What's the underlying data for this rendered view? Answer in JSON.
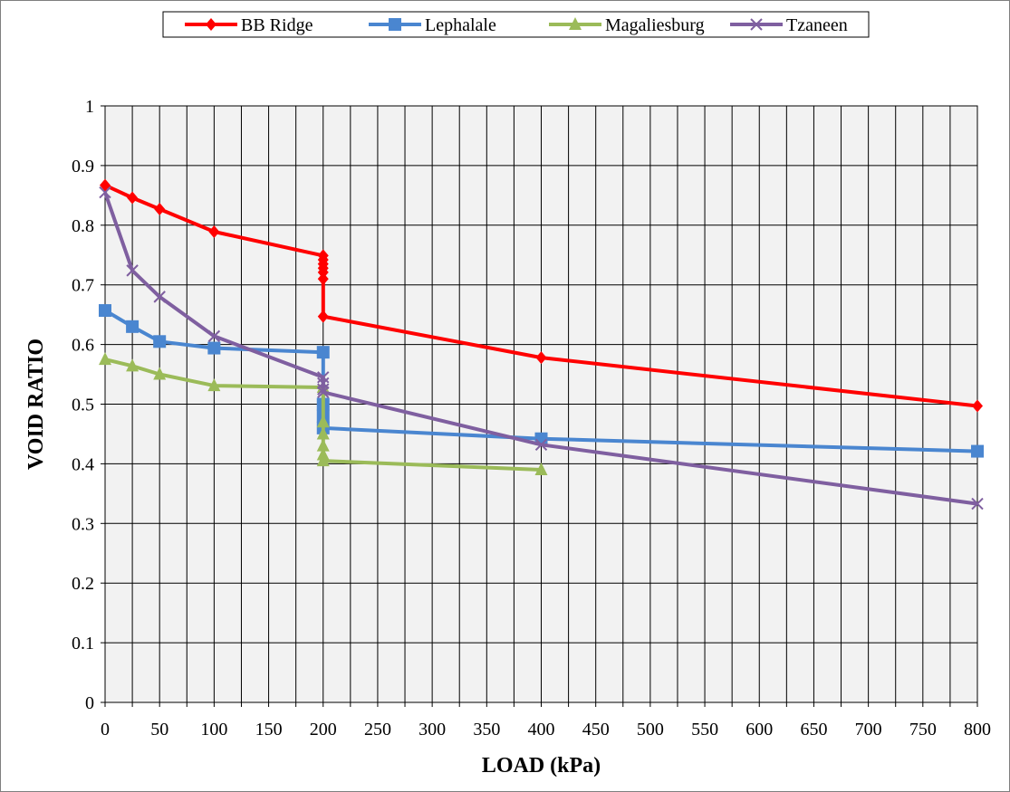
{
  "chart_data": {
    "type": "line",
    "title": "",
    "xlabel": "LOAD (kPa)",
    "ylabel": "VOID RATIO",
    "xlim": [
      0,
      800
    ],
    "ylim": [
      0,
      1
    ],
    "x_ticks": [
      0,
      50,
      100,
      150,
      200,
      250,
      300,
      350,
      400,
      450,
      500,
      550,
      600,
      650,
      700,
      750,
      800
    ],
    "y_ticks": [
      0,
      0.1,
      0.2,
      0.3,
      0.4,
      0.5,
      0.6,
      0.7,
      0.8,
      0.9,
      1
    ],
    "grid": true,
    "legend_position": "top",
    "plot_background": "#f2f2f2",
    "series": [
      {
        "name": "BB Ridge",
        "color": "#ff0000",
        "marker": "diamond",
        "points": [
          [
            0,
            0.867
          ],
          [
            25,
            0.846
          ],
          [
            50,
            0.827
          ],
          [
            100,
            0.789
          ],
          [
            200,
            0.749
          ],
          [
            200,
            0.742
          ],
          [
            200,
            0.735
          ],
          [
            200,
            0.728
          ],
          [
            200,
            0.721
          ],
          [
            200,
            0.71
          ],
          [
            200,
            0.647
          ],
          [
            400,
            0.578
          ],
          [
            800,
            0.497
          ]
        ]
      },
      {
        "name": "Lephalale",
        "color": "#4a86d0",
        "marker": "square",
        "points": [
          [
            0,
            0.657
          ],
          [
            25,
            0.63
          ],
          [
            50,
            0.605
          ],
          [
            100,
            0.594
          ],
          [
            200,
            0.587
          ],
          [
            200,
            0.5
          ],
          [
            200,
            0.48
          ],
          [
            200,
            0.46
          ],
          [
            400,
            0.442
          ],
          [
            800,
            0.421
          ]
        ]
      },
      {
        "name": "Magaliesburg",
        "color": "#9bbb59",
        "marker": "triangle",
        "points": [
          [
            0,
            0.575
          ],
          [
            25,
            0.564
          ],
          [
            50,
            0.55
          ],
          [
            100,
            0.531
          ],
          [
            200,
            0.528
          ],
          [
            200,
            0.47
          ],
          [
            200,
            0.45
          ],
          [
            200,
            0.43
          ],
          [
            200,
            0.415
          ],
          [
            200,
            0.405
          ],
          [
            400,
            0.39
          ]
        ]
      },
      {
        "name": "Tzaneen",
        "color": "#7f5fa0",
        "marker": "x",
        "points": [
          [
            0,
            0.855
          ],
          [
            25,
            0.724
          ],
          [
            50,
            0.68
          ],
          [
            100,
            0.614
          ],
          [
            200,
            0.545
          ],
          [
            200,
            0.535
          ],
          [
            200,
            0.525
          ],
          [
            200,
            0.52
          ],
          [
            400,
            0.432
          ],
          [
            800,
            0.333
          ]
        ]
      }
    ]
  }
}
